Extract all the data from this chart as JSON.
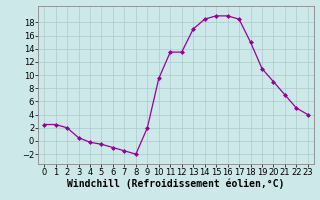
{
  "x": [
    0,
    1,
    2,
    3,
    4,
    5,
    6,
    7,
    8,
    9,
    10,
    11,
    12,
    13,
    14,
    15,
    16,
    17,
    18,
    19,
    20,
    21,
    22,
    23
  ],
  "y": [
    2.5,
    2.5,
    2.0,
    0.5,
    -0.2,
    -0.5,
    -1.0,
    -1.5,
    -2.0,
    2.0,
    9.5,
    13.5,
    13.5,
    17.0,
    18.5,
    19.0,
    19.0,
    18.5,
    15.0,
    11.0,
    9.0,
    7.0,
    5.0,
    4.0
  ],
  "line_color": "#990099",
  "marker": "D",
  "marker_size": 2,
  "bg_color": "#cce8e8",
  "grid_color": "#aacccc",
  "xlabel": "Windchill (Refroidissement éolien,°C)",
  "xlabel_fontsize": 7,
  "tick_fontsize": 6,
  "xlim": [
    -0.5,
    23.5
  ],
  "ylim": [
    -3.5,
    20.5
  ],
  "yticks": [
    -2,
    0,
    2,
    4,
    6,
    8,
    10,
    12,
    14,
    16,
    18
  ],
  "xticks": [
    0,
    1,
    2,
    3,
    4,
    5,
    6,
    7,
    8,
    9,
    10,
    11,
    12,
    13,
    14,
    15,
    16,
    17,
    18,
    19,
    20,
    21,
    22,
    23
  ]
}
